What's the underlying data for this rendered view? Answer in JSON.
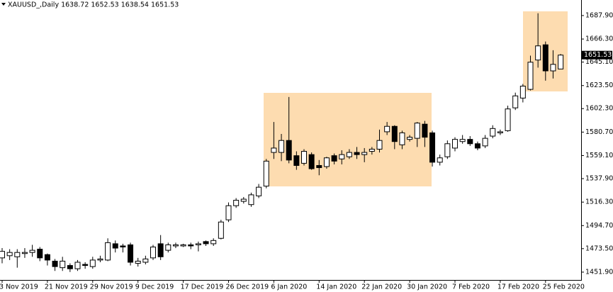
{
  "chart_data": {
    "type": "candlestick",
    "title": "XAUUSD_,Daily  1638.72 1652.53 1638.54 1651.53",
    "categories": [
      "3 Nov 2019",
      null,
      null,
      null,
      null,
      null,
      "21 Nov 2019",
      null,
      null,
      null,
      null,
      null,
      "29 Nov 2019",
      null,
      null,
      null,
      null,
      null,
      "9 Dec 2019",
      null,
      null,
      null,
      null,
      null,
      "17 Dec 2019",
      null,
      null,
      null,
      null,
      null,
      "26 Dec 2019",
      null,
      null,
      null,
      null,
      null,
      "6 Jan 2020",
      null,
      null,
      null,
      null,
      null,
      "14 Jan 2020",
      null,
      null,
      null,
      null,
      null,
      "22 Jan 2020",
      null,
      null,
      null,
      null,
      null,
      "30 Jan 2020",
      null,
      null,
      null,
      null,
      null,
      "7 Feb 2020",
      null,
      null,
      null,
      null,
      null,
      "17 Feb 2020",
      null,
      null,
      null,
      null,
      null,
      "25 Feb 2020",
      null,
      null
    ],
    "open": [
      1465,
      1467,
      1466,
      1469,
      1470,
      1473,
      1468,
      1462,
      1456,
      1458,
      1455,
      1459,
      1457,
      1463,
      1463,
      1478,
      1476,
      1477,
      1460,
      1461,
      1465,
      1478,
      1472,
      1476,
      1476,
      1477,
      1477,
      1480,
      1478,
      1483,
      1500,
      1513,
      1517,
      1514,
      1522,
      1531,
      1562,
      1562,
      1573,
      1559,
      1552,
      1560,
      1550,
      1549,
      1559,
      1556,
      1558,
      1562,
      1560,
      1563,
      1565,
      1581,
      1586,
      1569,
      1574,
      1575,
      1588,
      1580,
      1553,
      1558,
      1566,
      1572,
      1574,
      1570,
      1568,
      1577,
      1580,
      1582,
      1603,
      1612,
      1620,
      1647,
      1661,
      1637,
      1638.72
    ],
    "high": [
      1474,
      1473,
      1473,
      1474,
      1477,
      1475,
      1469,
      1464,
      1466,
      1460,
      1463,
      1461,
      1466,
      1467,
      1483,
      1481,
      1478,
      1479,
      1465,
      1467,
      1477,
      1486,
      1479,
      1479,
      1478,
      1479,
      1480,
      1481,
      1483,
      1500,
      1516,
      1520,
      1521,
      1525,
      1533,
      1556,
      1590,
      1579,
      1613,
      1563,
      1565,
      1562,
      1555,
      1558,
      1561,
      1564,
      1565,
      1567,
      1566,
      1567,
      1583,
      1590,
      1587,
      1582,
      1578,
      1590,
      1591,
      1582,
      1560,
      1573,
      1576,
      1578,
      1577,
      1572,
      1578,
      1587,
      1583,
      1605,
      1617,
      1625,
      1651,
      1690,
      1664,
      1656,
      1652.53
    ],
    "low": [
      1460,
      1463,
      1456,
      1465,
      1466,
      1462,
      1458,
      1453,
      1453,
      1452,
      1453,
      1455,
      1455,
      1461,
      1462,
      1470,
      1470,
      1458,
      1457,
      1459,
      1463,
      1463,
      1470,
      1474,
      1475,
      1473,
      1471,
      1476,
      1476,
      1482,
      1498,
      1511,
      1515,
      1512,
      1520,
      1529,
      1556,
      1554,
      1552,
      1546,
      1550,
      1546,
      1541,
      1547,
      1551,
      1551,
      1556,
      1556,
      1553,
      1560,
      1562,
      1578,
      1565,
      1565,
      1572,
      1567,
      1567,
      1549,
      1550,
      1556,
      1563,
      1570,
      1568,
      1564,
      1566,
      1575,
      1578,
      1581,
      1601,
      1608,
      1619,
      1640,
      1628,
      1630,
      1638.54
    ],
    "close": [
      1471,
      1470,
      1470,
      1470,
      1472,
      1465,
      1463,
      1457,
      1462,
      1455,
      1461,
      1458,
      1463,
      1464,
      1479,
      1474,
      1475,
      1461,
      1462,
      1464,
      1475,
      1466,
      1477,
      1477,
      1477,
      1476,
      1478,
      1478,
      1481,
      1498,
      1513,
      1518,
      1519,
      1523,
      1530,
      1554,
      1566,
      1573,
      1555,
      1550,
      1563,
      1547,
      1548,
      1557,
      1554,
      1560,
      1562,
      1560,
      1562,
      1565,
      1573,
      1586,
      1572,
      1580,
      1576,
      1589,
      1576,
      1553,
      1557,
      1570,
      1574,
      1574,
      1570,
      1566,
      1575,
      1584,
      1581,
      1602,
      1614,
      1623,
      1645,
      1660,
      1637,
      1643,
      1651.53
    ],
    "up_color": "#ffffff",
    "down_color": "#000000",
    "ylim": [
      1444.7,
      1702.2
    ],
    "yticks": [
      {
        "value": 1451.9,
        "label": "1451.90"
      },
      {
        "value": 1473.5,
        "label": "1473.50"
      },
      {
        "value": 1494.7,
        "label": "1494.70"
      },
      {
        "value": 1516.3,
        "label": "1516.30"
      },
      {
        "value": 1537.9,
        "label": "1537.90"
      },
      {
        "value": 1559.1,
        "label": "1559.10"
      },
      {
        "value": 1580.7,
        "label": "1580.70"
      },
      {
        "value": 1602.3,
        "label": "1602.30"
      },
      {
        "value": 1623.5,
        "label": "1623.50"
      },
      {
        "value": 1645.1,
        "label": "1645.10"
      },
      {
        "value": 1666.3,
        "label": "1666.30"
      },
      {
        "value": 1687.9,
        "label": "1687.90"
      }
    ],
    "grid": false
  }
}
